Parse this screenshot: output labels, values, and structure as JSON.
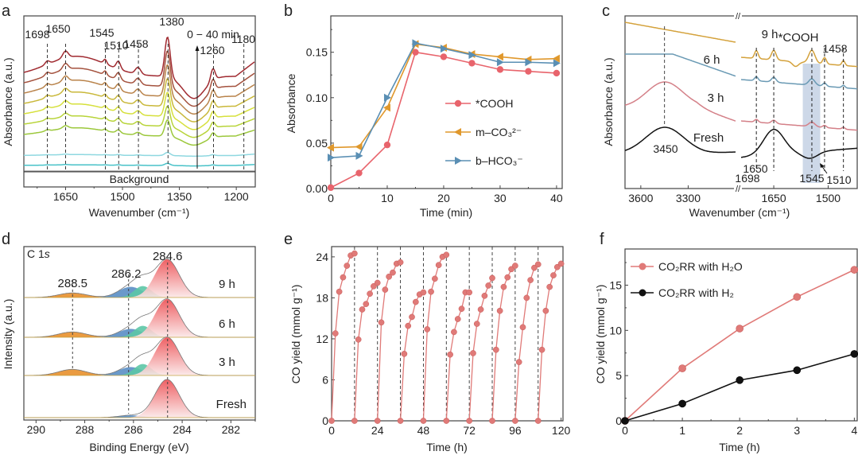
{
  "figure": {
    "panel_labels": [
      "a",
      "b",
      "c",
      "d",
      "e",
      "f"
    ]
  },
  "chart_data": [
    {
      "panel": "a",
      "type": "line",
      "title": "",
      "xlabel": "Wavenumber (cm⁻¹)",
      "ylabel": "Absorbance (a.u.)",
      "x_reversed": true,
      "xlim": [
        1760,
        1150
      ],
      "xticks": [
        1650,
        1500,
        1350,
        1200
      ],
      "peak_annotations": [
        "1698",
        "1650",
        "1545",
        "1510",
        "1458",
        "1380",
        "1260",
        "1180"
      ],
      "peak_positions": [
        1698,
        1650,
        1545,
        1510,
        1458,
        1380,
        1260,
        1180
      ],
      "arrow_label": "0 − 40 min",
      "baseline_label": "Background",
      "series_count": 9,
      "series_colors": [
        "#48c2c8",
        "#8fd8e0",
        "#9cc83c",
        "#b8d43a",
        "#d6e03c",
        "#c9b83a",
        "#b9834a",
        "#a4523e",
        "#a02a30"
      ],
      "grid": false
    },
    {
      "panel": "b",
      "type": "line",
      "title": "",
      "xlabel": "Time (min)",
      "ylabel": "Absorbance",
      "xlim": [
        0,
        41
      ],
      "ylim": [
        0,
        0.19
      ],
      "xticks": [
        0,
        10,
        20,
        30,
        40
      ],
      "yticks": [
        0.0,
        0.05,
        0.1,
        0.15
      ],
      "ytick_labels": [
        "0.00",
        "0.05",
        "0.10",
        "0.15"
      ],
      "x": [
        0,
        5,
        10,
        15,
        20,
        25,
        30,
        35,
        40
      ],
      "series": [
        {
          "name": "*COOH",
          "marker": "circle",
          "color": "#e8646c",
          "values": [
            0.001,
            0.017,
            0.048,
            0.15,
            0.145,
            0.138,
            0.131,
            0.129,
            0.127
          ]
        },
        {
          "name": "m–CO₃²⁻",
          "marker": "triangle-left",
          "color": "#e0982c",
          "values": [
            0.045,
            0.046,
            0.089,
            0.159,
            0.155,
            0.148,
            0.145,
            0.142,
            0.143
          ]
        },
        {
          "name": "b–HCO₃⁻",
          "marker": "triangle-right",
          "color": "#5a8fb4",
          "values": [
            0.034,
            0.036,
            0.1,
            0.16,
            0.154,
            0.147,
            0.139,
            0.139,
            0.138
          ]
        }
      ],
      "legend": "center-right",
      "grid": false
    },
    {
      "panel": "c",
      "type": "line",
      "title": "",
      "xlabel": "Wavenumber (cm⁻¹)",
      "ylabel": "Absorbance (a.u.)",
      "broken_axis": true,
      "left_segment": {
        "xlim": [
          3700,
          3000
        ],
        "xticks": [
          3600,
          3300
        ]
      },
      "right_segment": {
        "xlim": [
          1740,
          1420
        ],
        "xticks": [
          1650,
          1500
        ]
      },
      "series": [
        {
          "name": "9 h",
          "color": "#d4a23c"
        },
        {
          "name": "6 h",
          "color": "#6a9ab4"
        },
        {
          "name": "3 h",
          "color": "#d48088"
        },
        {
          "name": "Fresh",
          "color": "#111111"
        }
      ],
      "annotations": [
        "3450",
        "1698",
        "1650",
        "1545",
        "1510",
        "1458",
        "*COOH"
      ],
      "highlight_band_label": "*COOH",
      "grid": false
    },
    {
      "panel": "d",
      "type": "area",
      "title": "C 1s",
      "xlabel": "Binding Energy (eV)",
      "ylabel": "Intensity (a.u.)",
      "x_reversed": true,
      "xlim": [
        290.5,
        281
      ],
      "xticks": [
        290,
        288,
        286,
        284,
        282
      ],
      "peaks": [
        {
          "label": "288.5",
          "position": 288.5,
          "color": "#e8902c"
        },
        {
          "label": "286.2",
          "position": 286.2,
          "color": "#5a8ec4"
        },
        {
          "label": "284.6",
          "position": 284.6,
          "color": "#ec5e62"
        }
      ],
      "extra_component_color": "#5cc6a6",
      "series": [
        {
          "name": "9 h",
          "c_o_c_amp": 0.12,
          "c_o_amp": 0.28,
          "c_c_amp": 1.0
        },
        {
          "name": "6 h",
          "c_o_c_amp": 0.14,
          "c_o_amp": 0.22,
          "c_c_amp": 1.0
        },
        {
          "name": "3 h",
          "c_o_c_amp": 0.16,
          "c_o_amp": 0.22,
          "c_c_amp": 1.0
        },
        {
          "name": "Fresh",
          "c_o_c_amp": 0.0,
          "c_o_amp": 0.06,
          "c_c_amp": 1.0
        }
      ],
      "grid": false
    },
    {
      "panel": "e",
      "type": "scatter",
      "title": "",
      "xlabel": "Time (h)",
      "ylabel": "CO yield (mmol g⁻¹)",
      "xlim": [
        0,
        121
      ],
      "ylim": [
        0,
        25.5
      ],
      "xticks": [
        0,
        24,
        48,
        72,
        96,
        120
      ],
      "yticks": [
        0,
        6,
        12,
        18,
        24
      ],
      "cycle_boundaries": [
        12,
        24,
        36,
        48,
        60,
        72,
        84,
        96,
        108
      ],
      "color": "#e07a78",
      "cycles": [
        {
          "start": 0,
          "values": [
            0,
            12.8,
            18.9,
            21.0,
            22.7,
            24.2,
            24.5
          ]
        },
        {
          "start": 12,
          "values": [
            0,
            11.9,
            16.3,
            17.1,
            18.6,
            19.7,
            20.2
          ]
        },
        {
          "start": 24,
          "values": [
            0,
            14.4,
            19.2,
            21.1,
            21.7,
            23.0,
            23.2
          ]
        },
        {
          "start": 36,
          "values": [
            0,
            9.8,
            13.9,
            15.2,
            17.4,
            18.5,
            18.8
          ]
        },
        {
          "start": 48,
          "values": [
            0,
            13.4,
            18.9,
            20.8,
            22.8,
            24.0,
            24.3
          ]
        },
        {
          "start": 60,
          "values": [
            0,
            9.7,
            13.0,
            14.9,
            16.4,
            18.8,
            18.8
          ]
        },
        {
          "start": 72,
          "values": [
            0,
            9.9,
            14.2,
            16.3,
            18.3,
            19.8,
            20.9
          ]
        },
        {
          "start": 84,
          "values": [
            0,
            10.4,
            16.1,
            19.6,
            21.0,
            22.2,
            22.7
          ]
        },
        {
          "start": 96,
          "values": [
            0,
            8.6,
            13.7,
            18.0,
            20.6,
            22.4,
            22.9
          ]
        },
        {
          "start": 108,
          "values": [
            0,
            10.4,
            16.1,
            19.6,
            21.3,
            22.5,
            23.0
          ]
        }
      ],
      "grid": false
    },
    {
      "panel": "f",
      "type": "line",
      "title": "",
      "xlabel": "Time (h)",
      "ylabel": "CO yield (mmol g⁻¹)",
      "xlim": [
        0,
        4.05
      ],
      "ylim": [
        0,
        19
      ],
      "xticks": [
        0,
        1,
        2,
        3,
        4
      ],
      "yticks": [
        0,
        5,
        10,
        15
      ],
      "x": [
        0,
        1,
        2,
        3,
        4
      ],
      "series": [
        {
          "name": "CO₂RR with H₂O",
          "color": "#e07a78",
          "values": [
            0,
            5.8,
            10.2,
            13.7,
            16.7
          ]
        },
        {
          "name": "CO₂RR with H₂",
          "color": "#111111",
          "values": [
            0,
            1.9,
            4.5,
            5.6,
            7.4
          ]
        }
      ],
      "legend": "top-left",
      "grid": false
    }
  ]
}
